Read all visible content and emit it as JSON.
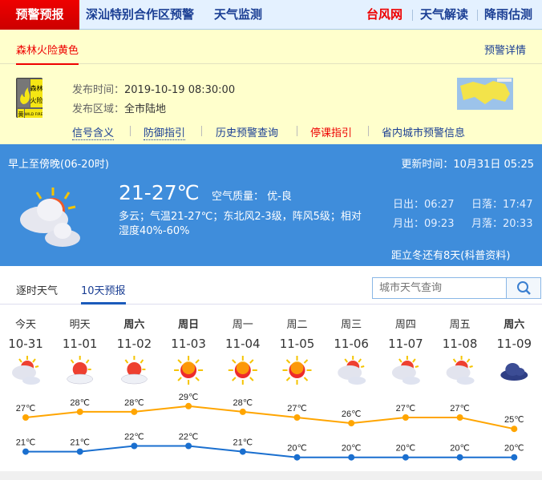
{
  "nav": {
    "active": "预警预报",
    "items": [
      "深汕特别合作区预警",
      "天气监测"
    ],
    "right": [
      {
        "label": "台风网",
        "color": "#ee0000"
      },
      {
        "label": "天气解读",
        "color": "#1b3f94"
      },
      {
        "label": "降雨估测",
        "color": "#1b3f94"
      }
    ]
  },
  "warning": {
    "tab": "森林火险黄色",
    "detail_link": "预警详情",
    "signal": {
      "top": "森林火险",
      "level": "黄",
      "en": "WILD FIRE",
      "color": "#f5e614"
    },
    "time_label": "发布时间：",
    "time": "2019-10-19 08:30:00",
    "area_label": "发布区域：",
    "area": "全市陆地",
    "links": [
      {
        "label": "信号含义",
        "color": "#1b3f94"
      },
      {
        "label": "防御指引",
        "color": "#1b3f94"
      },
      {
        "label": "历史预警查询",
        "color": "#1b3f94"
      },
      {
        "label": "停课指引",
        "color": "#ee0000"
      },
      {
        "label": "省内城市预警信息",
        "color": "#1b3f94"
      }
    ]
  },
  "now": {
    "period": "早上至傍晚(06-20时)",
    "update": "更新时间：10月31日 05:25",
    "temp": "21-27℃",
    "aqi": "空气质量： 优-良",
    "desc1": "多云；气温21-27℃；东北风2-3级，阵风5级；相对",
    "desc2": "湿度40%-60%",
    "sunrise": "日出：06:27",
    "sunset": "日落：17:47",
    "moonrise": "月出：09:23",
    "moonset": "月落：20:33",
    "solar_term": "距立冬还有8天(科普资料)",
    "icon": "partly-cloudy"
  },
  "tabs": {
    "hourly": "逐时天气",
    "ten_day": "10天预报",
    "search_placeholder": "城市天气查询"
  },
  "forecast": [
    {
      "day": "今天",
      "date": "10-31",
      "icon": "partly-cloudy",
      "bold": false
    },
    {
      "day": "明天",
      "date": "11-01",
      "icon": "sunny-cloudy",
      "bold": false
    },
    {
      "day": "周六",
      "date": "11-02",
      "icon": "sunny-cloudy",
      "bold": true
    },
    {
      "day": "周日",
      "date": "11-03",
      "icon": "sunny",
      "bold": true
    },
    {
      "day": "周一",
      "date": "11-04",
      "icon": "sunny",
      "bold": false
    },
    {
      "day": "周二",
      "date": "11-05",
      "icon": "sunny",
      "bold": false
    },
    {
      "day": "周三",
      "date": "11-06",
      "icon": "partly-cloudy",
      "bold": false
    },
    {
      "day": "周四",
      "date": "11-07",
      "icon": "partly-cloudy",
      "bold": false
    },
    {
      "day": "周五",
      "date": "11-08",
      "icon": "partly-cloudy",
      "bold": false
    },
    {
      "day": "周六",
      "date": "11-09",
      "icon": "overcast",
      "bold": true
    }
  ],
  "chart_data": {
    "type": "line",
    "categories": [
      "10-31",
      "11-01",
      "11-02",
      "11-03",
      "11-04",
      "11-05",
      "11-06",
      "11-07",
      "11-08",
      "11-09"
    ],
    "unit": "℃",
    "series": [
      {
        "key": "high",
        "values": [
          27,
          28,
          28,
          29,
          28,
          27,
          26,
          27,
          27,
          25
        ],
        "color": "#ffa500"
      },
      {
        "key": "low",
        "values": [
          21,
          21,
          22,
          22,
          21,
          20,
          20,
          20,
          20,
          20
        ],
        "color": "#1a6fcf"
      }
    ]
  }
}
